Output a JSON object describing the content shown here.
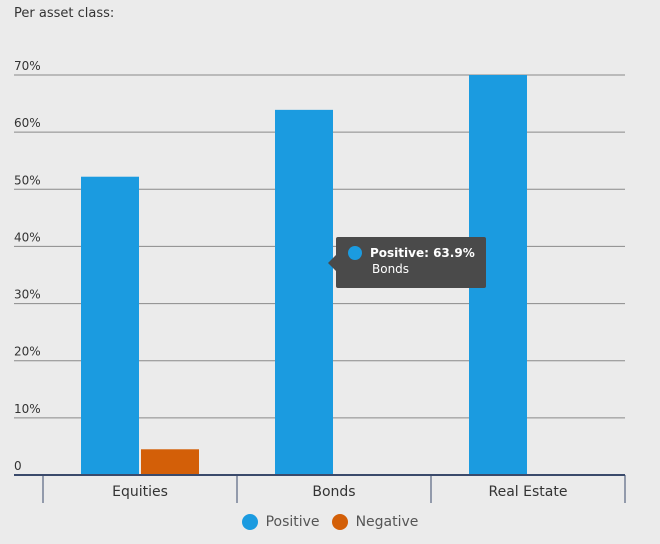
{
  "chart_data": {
    "type": "bar",
    "title": "Per asset class:",
    "categories": [
      "Equities",
      "Bonds",
      "Real Estate"
    ],
    "series": [
      {
        "name": "Positive",
        "color": "#1b9be0",
        "values": [
          52.2,
          63.9,
          70
        ]
      },
      {
        "name": "Negative",
        "color": "#d35f08",
        "values": [
          4.5,
          0,
          0
        ]
      }
    ],
    "ylim": [
      0,
      70
    ],
    "yticks": [
      0,
      10,
      20,
      30,
      40,
      50,
      60,
      70
    ],
    "ytick_labels": [
      "0",
      "10%",
      "20%",
      "30%",
      "40%",
      "50%",
      "60%",
      "70%"
    ],
    "grid": true,
    "legend": "bottom-center"
  },
  "tooltip": {
    "title": "Positive: 63.9%",
    "category": "Bonds",
    "color": "#1b9be0"
  }
}
